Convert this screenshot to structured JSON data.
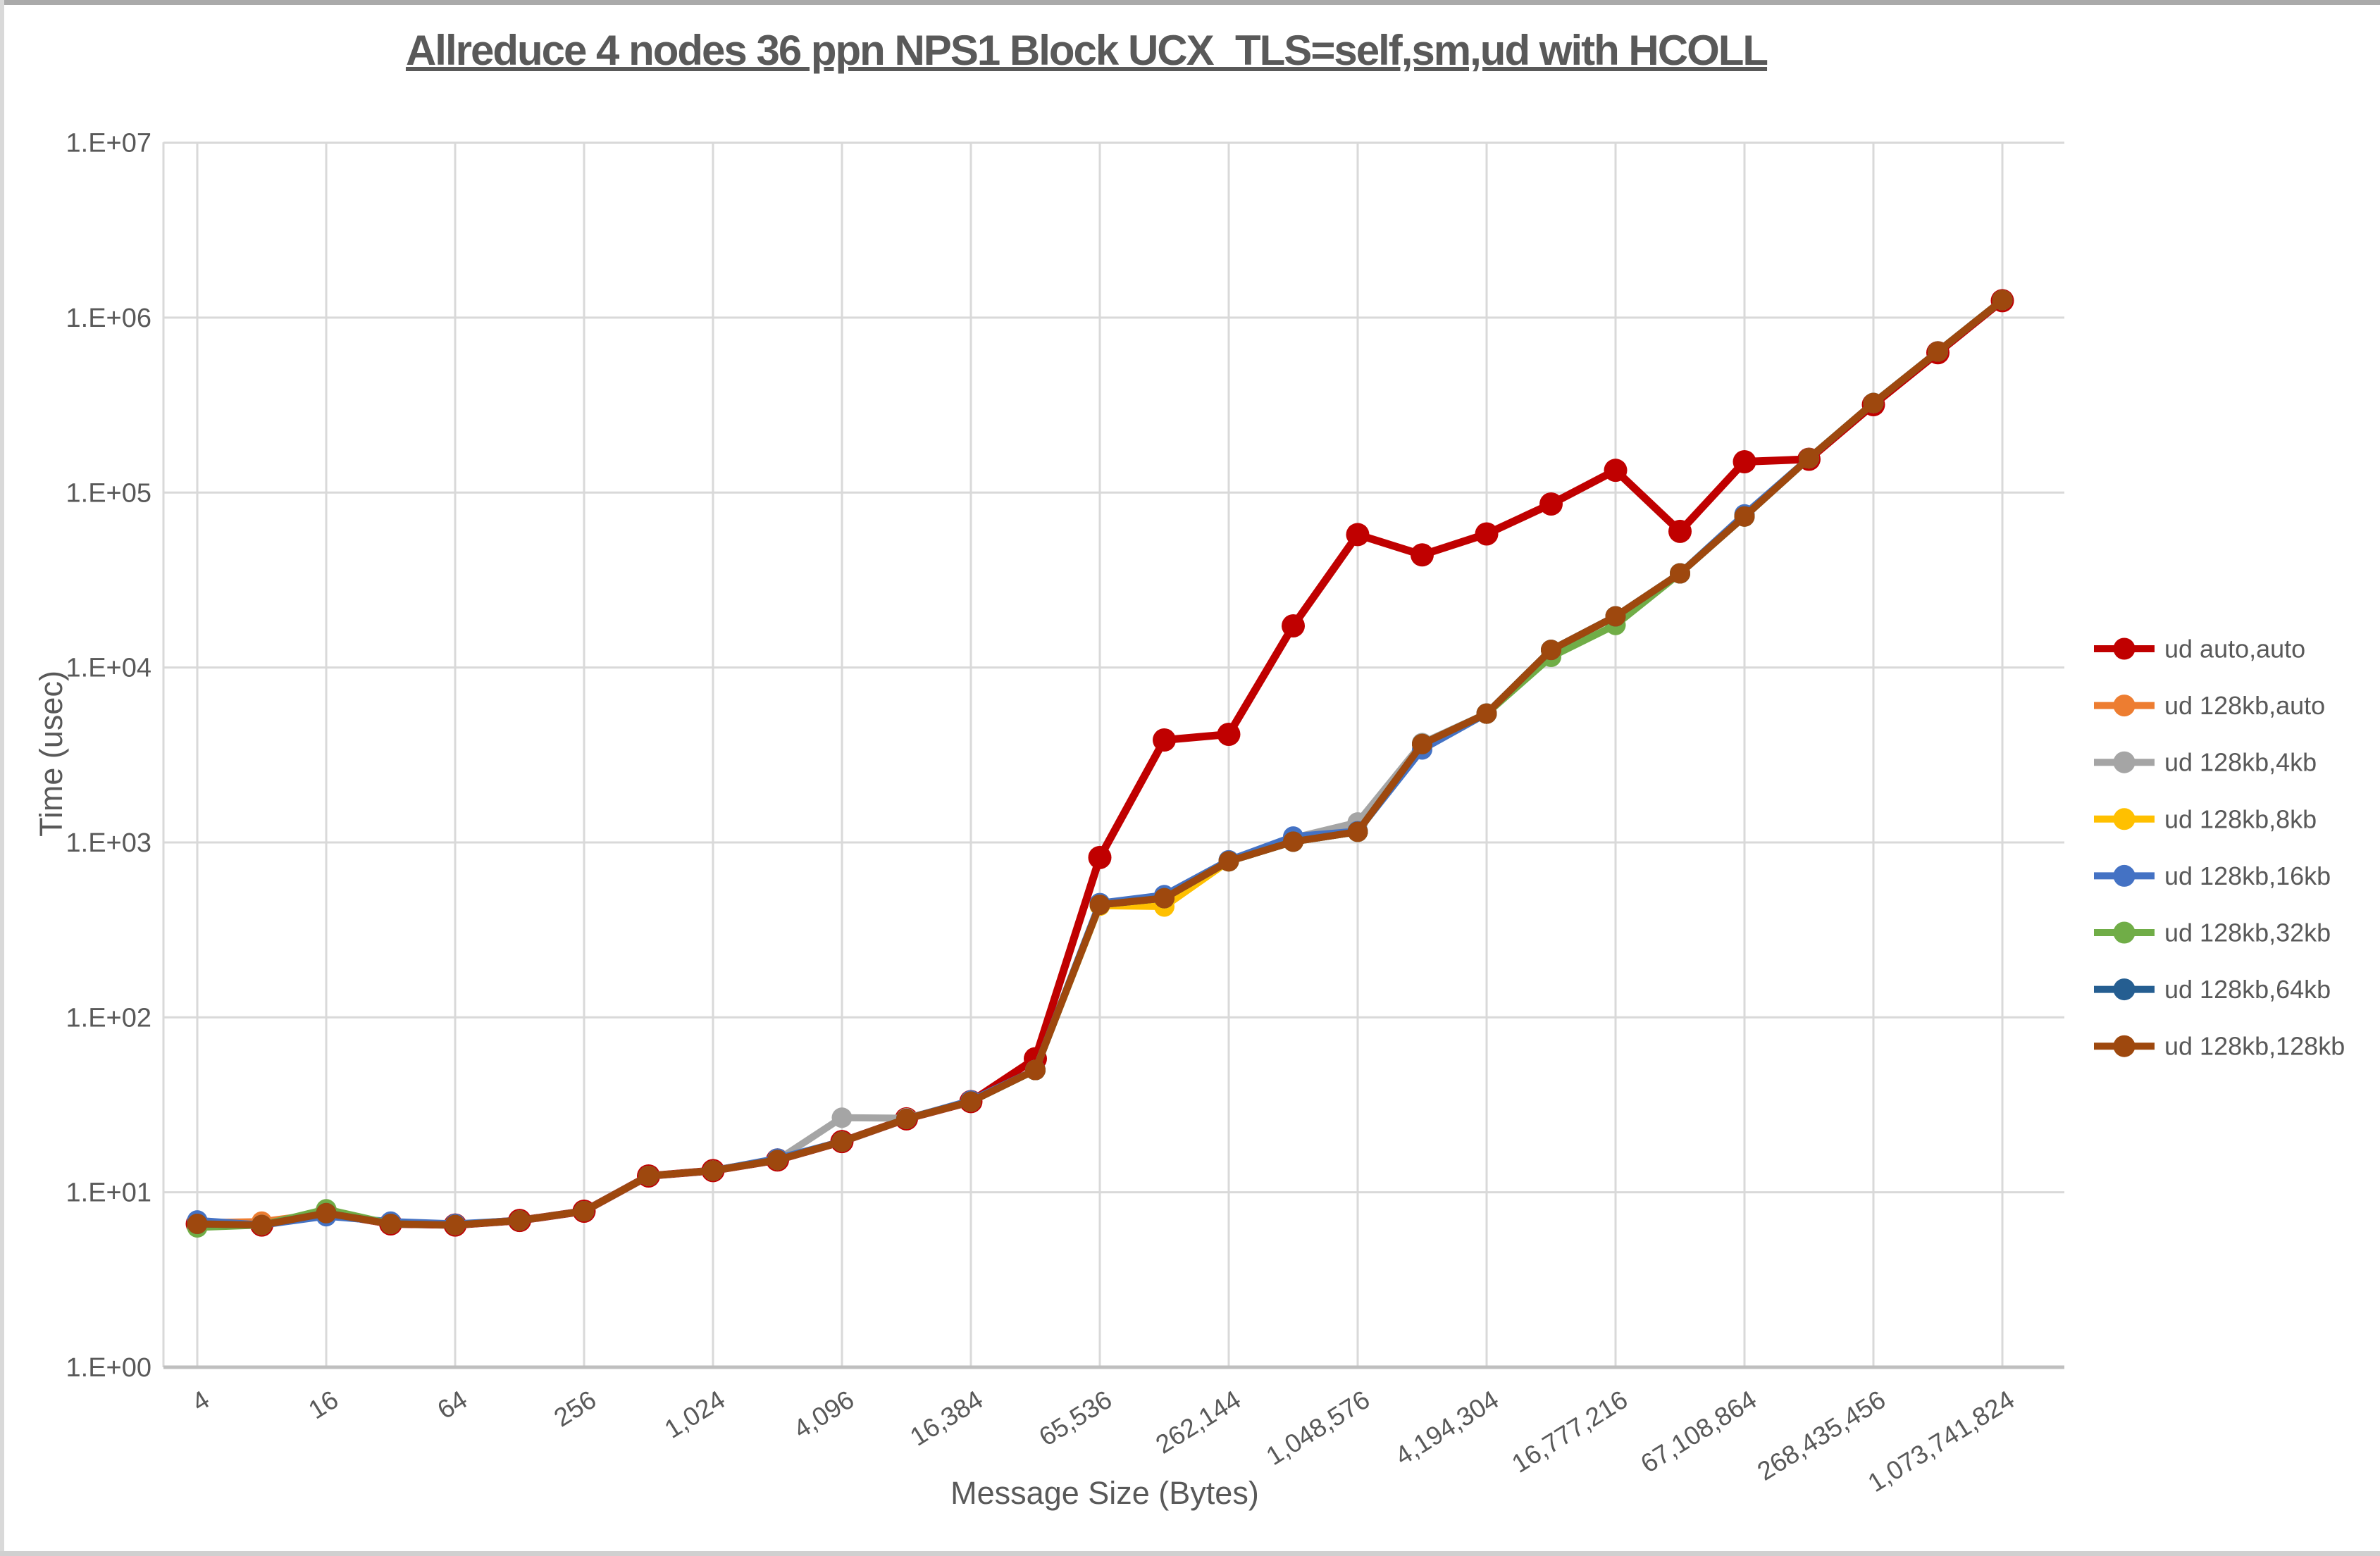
{
  "window": {
    "top_strip_color": "#AAAAAA",
    "left_strip_color": "#D9D9D9",
    "bottom_strip_color": "#D0D0D0"
  },
  "chart": {
    "title": "Allreduce 4 nodes 36 ppn NPS1 Block UCX_TLS=self,sm,ud with HCOLL",
    "title_color": "#595959",
    "grid_color": "#D9D9D9",
    "axis_line_color": "#BFBFBF",
    "label_color": "#595959",
    "background": "#FFFFFF"
  },
  "chart_data": {
    "type": "line",
    "title": "Allreduce 4 nodes 36 ppn NPS1 Block UCX_TLS=self,sm,ud with HCOLL",
    "xlabel": "Message Size (Bytes)",
    "ylabel": "Time (usec)",
    "x_scale": "log2",
    "y_scale": "log10",
    "ylim": [
      1,
      10000000
    ],
    "grid": true,
    "legend_position": "right",
    "marker": "circle",
    "y_ticks": [
      {
        "label": "1.E+00",
        "value": 1
      },
      {
        "label": "1.E+01",
        "value": 10
      },
      {
        "label": "1.E+02",
        "value": 100
      },
      {
        "label": "1.E+03",
        "value": 1000
      },
      {
        "label": "1.E+04",
        "value": 10000
      },
      {
        "label": "1.E+05",
        "value": 100000
      },
      {
        "label": "1.E+06",
        "value": 1000000
      },
      {
        "label": "1.E+07",
        "value": 10000000
      }
    ],
    "x": [
      4,
      8,
      16,
      32,
      64,
      128,
      256,
      512,
      1024,
      2048,
      4096,
      8192,
      16384,
      32768,
      65536,
      131072,
      262144,
      524288,
      1048576,
      2097152,
      4194304,
      8388608,
      16777216,
      33554432,
      67108864,
      134217728,
      268435456,
      536870912,
      1073741824
    ],
    "x_tick_labels": [
      "4",
      "16",
      "64",
      "256",
      "1,024",
      "4,096",
      "16,384",
      "65,536",
      "262,144",
      "1,048,576",
      "4,194,304",
      "16,777,216",
      "67,108,864",
      "268,435,456",
      "1,073,741,824"
    ],
    "series": [
      {
        "name": "ud auto,auto",
        "color": "#C00000",
        "values": [
          6.6,
          6.5,
          7.6,
          6.6,
          6.5,
          6.9,
          7.8,
          12.4,
          13.3,
          15.3,
          19.5,
          26.3,
          33,
          58,
          820,
          3850,
          4150,
          17300,
          57500,
          44000,
          58000,
          86000,
          134000,
          60000,
          150000,
          155000,
          318000,
          630000,
          1250000
        ]
      },
      {
        "name": "ud 128kb,auto",
        "color": "#ED7D31",
        "values": [
          6.7,
          6.8,
          7.6,
          6.6,
          6.5,
          6.9,
          7.8,
          12.4,
          13.3,
          15.3,
          19.5,
          26.3,
          33,
          50,
          440,
          480,
          780,
          1010,
          1150,
          3650,
          5450,
          12600,
          19600,
          34500,
          73000,
          157000,
          325000,
          640000,
          1260000
        ]
      },
      {
        "name": "ud 128kb,4kb",
        "color": "#A5A5A5",
        "values": [
          6.6,
          6.5,
          7.6,
          6.6,
          6.5,
          6.9,
          7.8,
          12.4,
          13.3,
          15.3,
          26.7,
          26.5,
          33,
          50,
          440,
          480,
          790,
          1060,
          1300,
          3700,
          5450,
          12600,
          19600,
          34500,
          74000,
          157000,
          325000,
          640000,
          1260000
        ]
      },
      {
        "name": "ud 128kb,8kb",
        "color": "#FFC000",
        "values": [
          6.6,
          6.5,
          7.6,
          6.6,
          6.5,
          6.9,
          7.8,
          12.4,
          13.3,
          15.3,
          19.5,
          26.3,
          33,
          50,
          435,
          430,
          780,
          1010,
          1150,
          3650,
          5450,
          12600,
          19600,
          34500,
          73000,
          157000,
          325000,
          640000,
          1260000
        ]
      },
      {
        "name": "ud 128kb,16kb",
        "color": "#4472C4",
        "values": [
          6.9,
          6.5,
          7.3,
          6.8,
          6.6,
          6.9,
          7.8,
          12.4,
          13.3,
          15.6,
          19.5,
          26.3,
          33.5,
          50,
          450,
          500,
          790,
          1080,
          1160,
          3400,
          5450,
          12600,
          19600,
          34500,
          75000,
          157000,
          325000,
          640000,
          1260000
        ]
      },
      {
        "name": "ud 128kb,32kb",
        "color": "#70AD47",
        "values": [
          6.3,
          6.5,
          8.0,
          6.6,
          6.5,
          6.9,
          7.8,
          12.4,
          13.3,
          15.3,
          19.5,
          26.3,
          33,
          50,
          440,
          480,
          780,
          1010,
          1150,
          3650,
          5450,
          11500,
          17500,
          34500,
          73000,
          157000,
          325000,
          640000,
          1260000
        ]
      },
      {
        "name": "ud 128kb,64kb",
        "color": "#255E91",
        "values": [
          6.6,
          6.5,
          7.6,
          6.6,
          6.5,
          6.9,
          7.8,
          12.4,
          13.3,
          15.3,
          19.5,
          26.3,
          33,
          50,
          440,
          480,
          780,
          1010,
          1150,
          3650,
          5450,
          12600,
          19600,
          34500,
          73000,
          157000,
          325000,
          640000,
          1260000
        ]
      },
      {
        "name": "ud 128kb,128kb",
        "color": "#9E480E",
        "values": [
          6.6,
          6.5,
          7.6,
          6.6,
          6.5,
          6.9,
          7.8,
          12.4,
          13.3,
          15.3,
          19.5,
          26.3,
          33,
          50,
          440,
          480,
          780,
          1010,
          1150,
          3650,
          5450,
          12600,
          19600,
          34500,
          73000,
          157000,
          325000,
          640000,
          1260000
        ]
      }
    ]
  }
}
